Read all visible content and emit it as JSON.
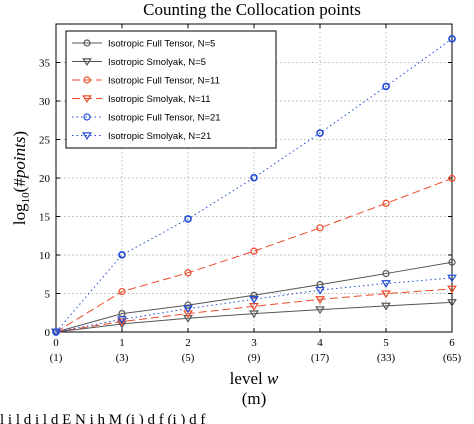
{
  "chart_data": {
    "type": "line",
    "title": "Counting the Collocation points",
    "xlabel": "level w",
    "ylabel": "log10(#points)",
    "xlim": [
      0,
      6
    ],
    "ylim": [
      0,
      40
    ],
    "grid": true,
    "legend_position": "top-left",
    "x": [
      0,
      1,
      2,
      3,
      4,
      5,
      6
    ],
    "x_ticks": [
      "0",
      "1",
      "2",
      "3",
      "4",
      "5",
      "6"
    ],
    "x_subticks": [
      "(1)",
      "(3)",
      "(5)",
      "(9)",
      "(17)",
      "(33)",
      "(65)"
    ],
    "y_ticks": [
      "0",
      "5",
      "10",
      "15",
      "20",
      "25",
      "30",
      "35"
    ],
    "series": [
      {
        "name": "Isotropic Full Tensor, N=5",
        "values": [
          0,
          2.39,
          3.49,
          4.77,
          6.15,
          7.59,
          9.06
        ],
        "color": "#555555",
        "dash": "",
        "marker": "circle"
      },
      {
        "name": "Isotropic Smolyak, N=5",
        "values": [
          0,
          1.04,
          1.79,
          2.38,
          2.91,
          3.39,
          3.84
        ],
        "color": "#555555",
        "dash": "",
        "marker": "triangle-down"
      },
      {
        "name": "Isotropic Full Tensor, N=11",
        "values": [
          0,
          5.25,
          7.69,
          10.5,
          13.53,
          16.7,
          19.94
        ],
        "color": "#ee4a2a",
        "dash": "8,4",
        "marker": "circle"
      },
      {
        "name": "Isotropic Smolyak, N=11",
        "values": [
          0,
          1.36,
          2.39,
          3.34,
          4.23,
          4.98,
          5.6
        ],
        "color": "#ee4a2a",
        "dash": "8,4",
        "marker": "triangle-down"
      },
      {
        "name": "Isotropic Full Tensor, N=21",
        "values": [
          0,
          10.02,
          14.68,
          20.04,
          25.84,
          31.89,
          38.07
        ],
        "color": "#1f4bd6",
        "dash": "1.5,3",
        "marker": "circle"
      },
      {
        "name": "Isotropic Smolyak, N=21",
        "values": [
          0,
          1.63,
          3.04,
          4.25,
          5.44,
          6.31,
          7.03
        ],
        "color": "#1f4bd6",
        "dash": "1.5,3",
        "marker": "triangle-down"
      }
    ]
  },
  "caption_fragment": "(m)",
  "footer_fragment": "l i   l d   i          l    d         E N    i h  M       (i )       d  f (i )         d   f"
}
